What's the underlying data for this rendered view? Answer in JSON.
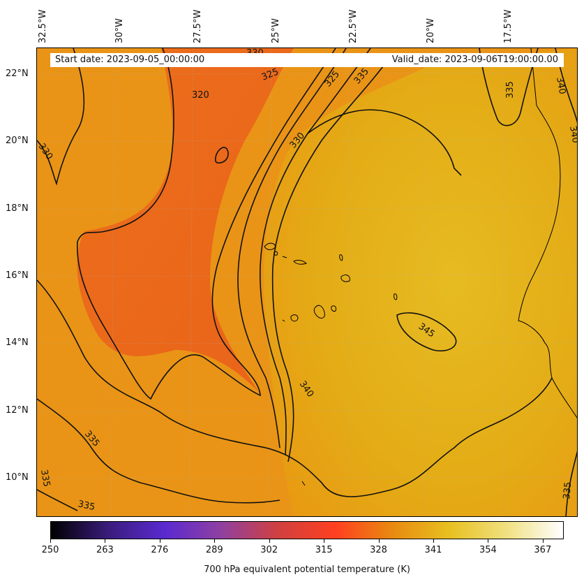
{
  "header": {
    "start_date": "Start date: 2023-09-05_00:00:00",
    "valid_date": "Valid_date: 2023-09-06T19:00:00.00"
  },
  "axes": {
    "longitude_labels": [
      "32.5°W",
      "30°W",
      "27.5°W",
      "25°W",
      "22.5°W",
      "20°W",
      "17.5°W"
    ],
    "latitude_labels": [
      "22°N",
      "20°N",
      "18°N",
      "16°N",
      "14°N",
      "12°N",
      "10°N"
    ]
  },
  "contour_labels": [
    "330",
    "325",
    "320",
    "325",
    "335",
    "330",
    "335",
    "340",
    "330",
    "340",
    "345",
    "340",
    "335",
    "335",
    "335",
    "335"
  ],
  "colorbar": {
    "title": "700 hPa equivalent potential temperature (K)",
    "tick_labels": [
      "250",
      "263",
      "276",
      "289",
      "302",
      "315",
      "328",
      "341",
      "354",
      "367"
    ],
    "range": [
      250,
      372
    ],
    "colors": [
      "#000000",
      "#3a1c7a",
      "#5a2ad0",
      "#9040a0",
      "#d04040",
      "#ff4020",
      "#e88a10",
      "#e8c020",
      "#f0e080",
      "#ffffff"
    ]
  },
  "colors": {
    "warm_field": "#e8a010",
    "cool_field": "#e8601a",
    "coast": "#000000"
  }
}
